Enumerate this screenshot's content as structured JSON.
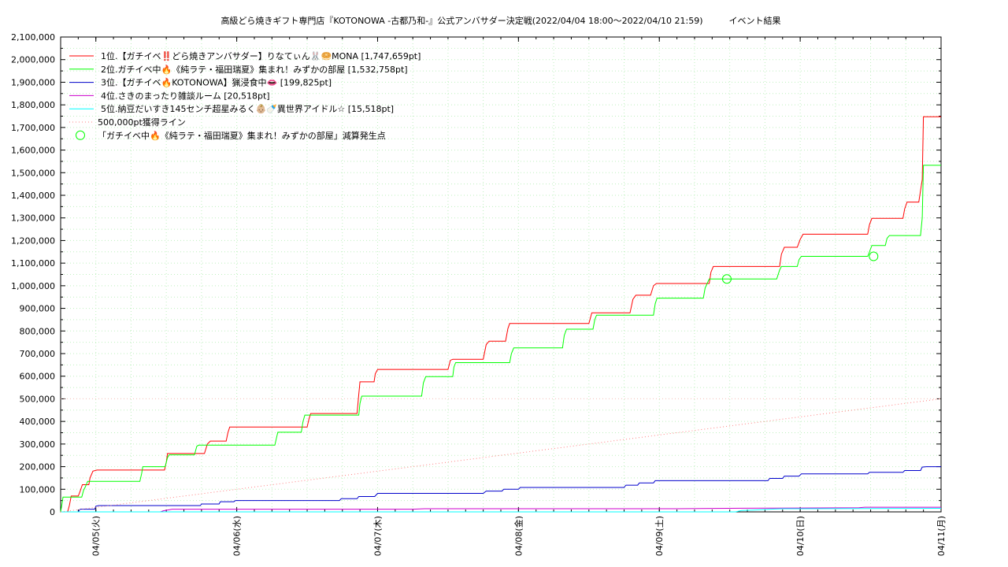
{
  "chart_data": {
    "type": "line",
    "title": "高級どら焼きギフト専門店『KOTONOWA -古都乃和-』公式アンバサダー決定戦(2022/04/04 18:00～2022/04/10 21:59)　　　イベント結果",
    "xlabel": "",
    "ylabel": "",
    "x_unit": "hours since 2022/04/04 18:00",
    "xlim": [
      0,
      150
    ],
    "ylim": [
      0,
      2100000
    ],
    "yticks": [
      0,
      100000,
      200000,
      300000,
      400000,
      500000,
      600000,
      700000,
      800000,
      900000,
      1000000,
      1100000,
      1200000,
      1300000,
      1400000,
      1500000,
      1600000,
      1700000,
      1800000,
      1900000,
      2000000,
      2100000
    ],
    "ytick_labels": [
      "0",
      "100,000",
      "200,000",
      "300,000",
      "400,000",
      "500,000",
      "600,000",
      "700,000",
      "800,000",
      "900,000",
      "1,000,000",
      "1,100,000",
      "1,200,000",
      "1,300,000",
      "1,400,000",
      "1,500,000",
      "1,600,000",
      "1,700,000",
      "1,800,000",
      "1,900,000",
      "2,000,000",
      "2,100,000"
    ],
    "xticks": [
      {
        "x": 6,
        "label": "04/05(火)"
      },
      {
        "x": 30,
        "label": "04/06(水)"
      },
      {
        "x": 54,
        "label": "04/07(木)"
      },
      {
        "x": 78,
        "label": "04/08(金)"
      },
      {
        "x": 102,
        "label": "04/09(土)"
      },
      {
        "x": 126,
        "label": "04/10(日)"
      },
      {
        "x": 150,
        "label": "04/11(月)"
      }
    ],
    "grid": true,
    "legend_position": "top-left",
    "series": [
      {
        "name": "1位.【ガチイベ‼️どら焼きアンバサダー】りなてぃん🐰🥯MONA [1,747,659pt]",
        "color": "#ff0000",
        "points": [
          [
            0,
            0
          ],
          [
            1.2,
            0
          ],
          [
            1.5,
            30000
          ],
          [
            1.8,
            70000
          ],
          [
            3,
            70000
          ],
          [
            3.3,
            90000
          ],
          [
            3.7,
            120000
          ],
          [
            4.8,
            120000
          ],
          [
            5,
            150000
          ],
          [
            5.5,
            180000
          ],
          [
            6.2,
            185000
          ],
          [
            17.7,
            185000
          ],
          [
            18,
            220000
          ],
          [
            18.2,
            258000
          ],
          [
            24.5,
            258000
          ],
          [
            25,
            300000
          ],
          [
            25.5,
            313000
          ],
          [
            28.2,
            313000
          ],
          [
            28.5,
            350000
          ],
          [
            28.8,
            375000
          ],
          [
            42,
            375000
          ],
          [
            42.3,
            410000
          ],
          [
            42.6,
            435000
          ],
          [
            50.5,
            435000
          ],
          [
            50.8,
            520000
          ],
          [
            51,
            575000
          ],
          [
            53.4,
            575000
          ],
          [
            53.6,
            610000
          ],
          [
            54,
            630000
          ],
          [
            66,
            630000
          ],
          [
            66.4,
            670000
          ],
          [
            66.8,
            675000
          ],
          [
            72,
            675000
          ],
          [
            72.5,
            740000
          ],
          [
            73,
            755000
          ],
          [
            75.8,
            755000
          ],
          [
            76.2,
            810000
          ],
          [
            76.5,
            833000
          ],
          [
            90,
            833000
          ],
          [
            90.5,
            880000
          ],
          [
            97,
            880000
          ],
          [
            97.5,
            940000
          ],
          [
            98,
            958000
          ],
          [
            100.5,
            958000
          ],
          [
            101,
            1000000
          ],
          [
            101.5,
            1010000
          ],
          [
            110.5,
            1010000
          ],
          [
            110.8,
            1060000
          ],
          [
            111.2,
            1085000
          ],
          [
            122.5,
            1085000
          ],
          [
            122.8,
            1140000
          ],
          [
            123.3,
            1170000
          ],
          [
            125.5,
            1170000
          ],
          [
            126,
            1205000
          ],
          [
            126.5,
            1228000
          ],
          [
            137.5,
            1228000
          ],
          [
            137.8,
            1270000
          ],
          [
            138.2,
            1298000
          ],
          [
            143.5,
            1298000
          ],
          [
            143.8,
            1340000
          ],
          [
            144.2,
            1370000
          ],
          [
            146.2,
            1370000
          ],
          [
            146.5,
            1420000
          ],
          [
            146.8,
            1470000
          ],
          [
            147,
            1747659
          ],
          [
            150,
            1747659
          ]
        ]
      },
      {
        "name": "2位.ガチイベ中🔥《純ラテ・福田瑞夏》集まれ！みずかの部屋 [1,532,758pt]",
        "color": "#00ff00",
        "points": [
          [
            0,
            0
          ],
          [
            0.2,
            30000
          ],
          [
            0.4,
            65000
          ],
          [
            3.6,
            65000
          ],
          [
            3.9,
            95000
          ],
          [
            4.2,
            110000
          ],
          [
            4.6,
            135000
          ],
          [
            13.5,
            135000
          ],
          [
            13.8,
            170000
          ],
          [
            14,
            200000
          ],
          [
            17.8,
            200000
          ],
          [
            18.2,
            240000
          ],
          [
            18.5,
            252000
          ],
          [
            22.8,
            252000
          ],
          [
            23.2,
            290000
          ],
          [
            23.5,
            295000
          ],
          [
            36.5,
            295000
          ],
          [
            36.8,
            330000
          ],
          [
            37,
            352000
          ],
          [
            41,
            352000
          ],
          [
            41.3,
            400000
          ],
          [
            41.6,
            428000
          ],
          [
            50.8,
            428000
          ],
          [
            51,
            480000
          ],
          [
            51.3,
            512000
          ],
          [
            61.5,
            512000
          ],
          [
            61.8,
            570000
          ],
          [
            62.2,
            598000
          ],
          [
            66.8,
            598000
          ],
          [
            67,
            640000
          ],
          [
            67.3,
            660000
          ],
          [
            76.5,
            660000
          ],
          [
            76.8,
            700000
          ],
          [
            77.2,
            725000
          ],
          [
            85.5,
            725000
          ],
          [
            85.8,
            780000
          ],
          [
            86.2,
            808000
          ],
          [
            90.7,
            808000
          ],
          [
            91,
            850000
          ],
          [
            91.3,
            870000
          ],
          [
            101,
            870000
          ],
          [
            101.3,
            920000
          ],
          [
            101.6,
            945000
          ],
          [
            109.5,
            945000
          ],
          [
            109.8,
            990000
          ],
          [
            110.5,
            1030000
          ],
          [
            122,
            1030000
          ],
          [
            122.5,
            1070000
          ],
          [
            122.8,
            1085000
          ],
          [
            125.5,
            1085000
          ],
          [
            125.8,
            1115000
          ],
          [
            126.2,
            1130000
          ],
          [
            137.5,
            1130000
          ],
          [
            137.8,
            1150000
          ],
          [
            138.2,
            1178000
          ],
          [
            140.5,
            1178000
          ],
          [
            140.8,
            1210000
          ],
          [
            141.2,
            1222000
          ],
          [
            146.5,
            1222000
          ],
          [
            146.8,
            1300000
          ],
          [
            147,
            1532758
          ],
          [
            150,
            1532758
          ]
        ]
      },
      {
        "name": "3位.【ガチイベ🔥KOTONOWA】猟浸食中👄 [199,825pt]",
        "color": "#0000cc",
        "points": [
          [
            0,
            0
          ],
          [
            3,
            0
          ],
          [
            3.3,
            12000
          ],
          [
            5.8,
            12000
          ],
          [
            6,
            25000
          ],
          [
            6.5,
            28000
          ],
          [
            23.8,
            28000
          ],
          [
            24,
            35000
          ],
          [
            27,
            35000
          ],
          [
            27.2,
            45000
          ],
          [
            29.5,
            45000
          ],
          [
            29.8,
            50000
          ],
          [
            47.5,
            50000
          ],
          [
            47.8,
            58000
          ],
          [
            50.5,
            58000
          ],
          [
            50.8,
            68000
          ],
          [
            53.5,
            68000
          ],
          [
            54,
            82000
          ],
          [
            72,
            82000
          ],
          [
            72.5,
            92000
          ],
          [
            75.2,
            92000
          ],
          [
            75.5,
            100000
          ],
          [
            78,
            100000
          ],
          [
            78.3,
            108000
          ],
          [
            96,
            108000
          ],
          [
            96.3,
            118000
          ],
          [
            98.3,
            118000
          ],
          [
            98.6,
            128000
          ],
          [
            101,
            128000
          ],
          [
            101.3,
            138000
          ],
          [
            120.5,
            138000
          ],
          [
            120.8,
            148000
          ],
          [
            123,
            148000
          ],
          [
            123.3,
            158000
          ],
          [
            125.8,
            158000
          ],
          [
            126.2,
            168000
          ],
          [
            137.5,
            168000
          ],
          [
            137.8,
            175000
          ],
          [
            143.5,
            175000
          ],
          [
            143.8,
            183000
          ],
          [
            146.5,
            183000
          ],
          [
            146.8,
            198000
          ],
          [
            147.5,
            199825
          ],
          [
            150,
            199825
          ]
        ]
      },
      {
        "name": "4位.さきのまったり雑談ルーム [20,518pt]",
        "color": "#cc00cc",
        "points": [
          [
            0,
            0
          ],
          [
            17,
            0
          ],
          [
            17.5,
            5000
          ],
          [
            19,
            12000
          ],
          [
            60,
            12000
          ],
          [
            62,
            14000
          ],
          [
            105,
            14000
          ],
          [
            116,
            16000
          ],
          [
            136,
            18000
          ],
          [
            137,
            20518
          ],
          [
            150,
            20518
          ]
        ]
      },
      {
        "name": "5位.納豆だいすき145センチ超星みるく👶🏼🍼異世界アイドル☆ [15,518pt]",
        "color": "#00ffff",
        "points": [
          [
            0,
            0
          ],
          [
            115,
            0
          ],
          [
            116,
            6000
          ],
          [
            118,
            8000
          ],
          [
            121,
            12000
          ],
          [
            123,
            14000
          ],
          [
            150,
            15518
          ]
        ]
      },
      {
        "name": "500,000pt獲得ライン",
        "color": "#ff8080",
        "style": "dotted",
        "points": [
          [
            0,
            0
          ],
          [
            150,
            500000
          ]
        ]
      }
    ],
    "markers": [
      {
        "name": "「ガチイベ中🔥《純ラテ・福田瑞夏》集まれ！みずかの部屋」減算発生点",
        "color": "#00ff00",
        "points": [
          [
            113.5,
            1030000
          ],
          [
            138.5,
            1130000
          ]
        ]
      }
    ],
    "reference_lines": [
      {
        "y": 500000,
        "color": "#ffc0c0",
        "style": "dotted"
      }
    ]
  }
}
